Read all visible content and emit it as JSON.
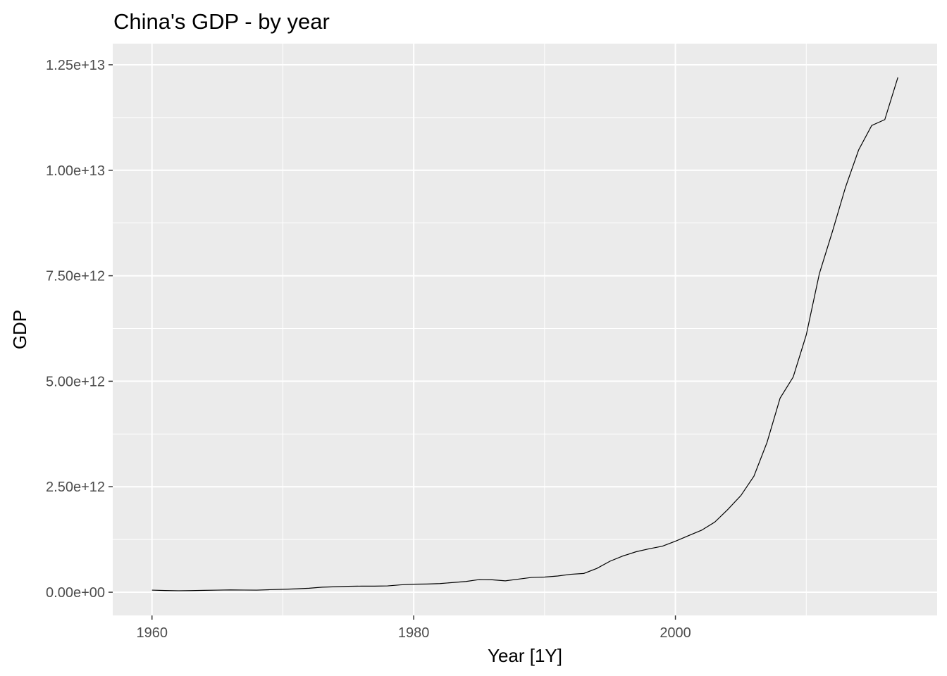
{
  "chart_data": {
    "type": "line",
    "title": "China's GDP - by year",
    "xlabel": "Year [1Y]",
    "ylabel": "GDP",
    "xlim": [
      1957,
      2020
    ],
    "ylim": [
      -550000000000.0,
      13000000000000.0
    ],
    "x_ticks": [
      1960,
      1980,
      2000
    ],
    "x_tick_labels": [
      "1960",
      "1980",
      "2000"
    ],
    "y_ticks": [
      0,
      2500000000000.0,
      5000000000000.0,
      7500000000000.0,
      10000000000000.0,
      12500000000000.0
    ],
    "y_tick_labels": [
      "0.00e+00",
      "2.50e+12",
      "5.00e+12",
      "7.50e+12",
      "1.00e+13",
      "1.25e+13"
    ],
    "grid": true,
    "colors": {
      "panel": "#ebebeb",
      "grid": "#ffffff",
      "line": "#000000",
      "tick": "#333333"
    },
    "series": [
      {
        "x": [
          1960,
          1961,
          1962,
          1963,
          1964,
          1965,
          1966,
          1967,
          1968,
          1969,
          1970,
          1971,
          1972,
          1973,
          1974,
          1975,
          1976,
          1977,
          1978,
          1979,
          1980,
          1981,
          1982,
          1983,
          1984,
          1985,
          1986,
          1987,
          1988,
          1989,
          1990,
          1991,
          1992,
          1993,
          1994,
          1995,
          1996,
          1997,
          1998,
          1999,
          2000,
          2001,
          2002,
          2003,
          2004,
          2005,
          2006,
          2007,
          2008,
          2009,
          2010,
          2011,
          2012,
          2013,
          2014,
          2015,
          2016,
          2017
        ],
        "y": [
          50000000000.0,
          40000000000.0,
          35000000000.0,
          38000000000.0,
          45000000000.0,
          50000000000.0,
          55000000000.0,
          52000000000.0,
          50000000000.0,
          60000000000.0,
          70000000000.0,
          80000000000.0,
          95000000000.0,
          120000000000.0,
          130000000000.0,
          140000000000.0,
          145000000000.0,
          145000000000.0,
          150000000000.0,
          175000000000.0,
          190000000000.0,
          195000000000.0,
          205000000000.0,
          230000000000.0,
          255000000000.0,
          300000000000.0,
          295000000000.0,
          270000000000.0,
          310000000000.0,
          350000000000.0,
          360000000000.0,
          385000000000.0,
          425000000000.0,
          445000000000.0,
          565000000000.0,
          735000000000.0,
          860000000000.0,
          960000000000.0,
          1030000000000.0,
          1090000000000.0,
          1210000000000.0,
          1340000000000.0,
          1470000000000.0,
          1660000000000.0,
          1960000000000.0,
          2290000000000.0,
          2750000000000.0,
          3550000000000.0,
          4600000000000.0,
          5100000000000.0,
          6100000000000.0,
          7550000000000.0,
          8550000000000.0,
          9600000000000.0,
          10480000000000.0,
          11060000000000.0,
          11200000000000.0,
          12200000000000.0
        ]
      }
    ]
  }
}
